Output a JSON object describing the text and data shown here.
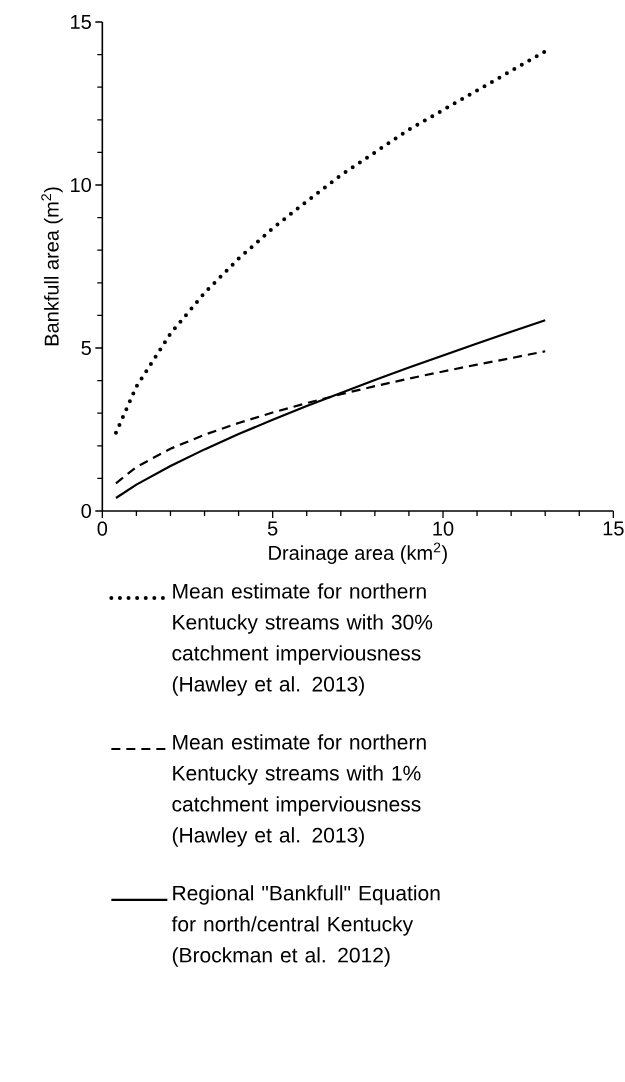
{
  "chart_data": {
    "type": "line",
    "xlabel": "Drainage area (km$^{2}$)",
    "ylabel": "Bankfull area (m$^{2}$)",
    "x": [
      0.4,
      1,
      2,
      3,
      4,
      5,
      6,
      7,
      8,
      9,
      10,
      11,
      12,
      13
    ],
    "series": [
      {
        "name": "Mean estimate for northern Kentucky streams with 30% catchment imperviousness (Hawley et al. 2013)",
        "color": "#000000",
        "line_style": "dotted",
        "values": [
          2.4,
          3.82,
          5.44,
          6.69,
          7.74,
          8.67,
          9.5,
          10.3,
          11.0,
          11.7,
          12.3,
          12.9,
          13.5,
          14.1
        ]
      },
      {
        "name": "Mean estimate for northern Kentucky streams with 1% catchment imperviousness (Hawley et al. 2013)",
        "color": "#000000",
        "line_style": "dashed",
        "values": [
          0.85,
          1.35,
          1.91,
          2.34,
          2.7,
          3.02,
          3.31,
          3.58,
          3.83,
          4.06,
          4.28,
          4.49,
          4.69,
          4.9
        ]
      },
      {
        "name": "Regional \"Bankfull\" Equation for north/central Kentucky (Brockman et al. 2012)",
        "color": "#000000",
        "line_style": "solid",
        "values": [
          0.4,
          0.81,
          1.38,
          1.89,
          2.36,
          2.8,
          3.22,
          3.62,
          4.02,
          4.4,
          4.77,
          5.14,
          5.5,
          5.85
        ]
      }
    ],
    "xlim": [
      0,
      15
    ],
    "ylim": [
      0,
      15
    ],
    "xticks": [
      0,
      5,
      10,
      15
    ],
    "yticks": [
      0,
      5,
      10,
      15
    ],
    "legend": "bottom"
  }
}
